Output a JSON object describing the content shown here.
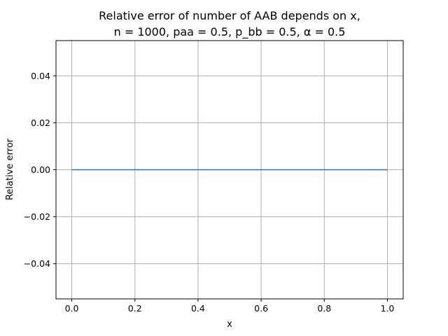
{
  "chart_data": {
    "type": "line",
    "title_lines": [
      "Relative error of number of AAB depends on x,",
      "n = 1000, paa = 0.5, p_bb = 0.5, α = 0.5"
    ],
    "xlabel": "x",
    "ylabel": "Relative error",
    "xlim": [
      -0.05,
      1.05
    ],
    "ylim": [
      -0.055,
      0.055
    ],
    "x_ticks": [
      0.0,
      0.2,
      0.4,
      0.6,
      0.8,
      1.0
    ],
    "x_tick_labels": [
      "0.0",
      "0.2",
      "0.4",
      "0.6",
      "0.8",
      "1.0"
    ],
    "y_ticks": [
      -0.04,
      -0.02,
      0.0,
      0.02,
      0.04
    ],
    "y_tick_labels": [
      "−0.04",
      "−0.02",
      "0.00",
      "0.02",
      "0.04"
    ],
    "grid": true,
    "series": [
      {
        "color": "#1f77b4",
        "x": [
          0.0,
          0.1,
          0.2,
          0.3,
          0.4,
          0.5,
          0.6,
          0.7,
          0.8,
          0.9,
          1.0
        ],
        "y": [
          0.0,
          0.0,
          0.0,
          0.0,
          0.0,
          0.0,
          0.0,
          0.0,
          0.0,
          0.0,
          0.0
        ]
      }
    ]
  }
}
